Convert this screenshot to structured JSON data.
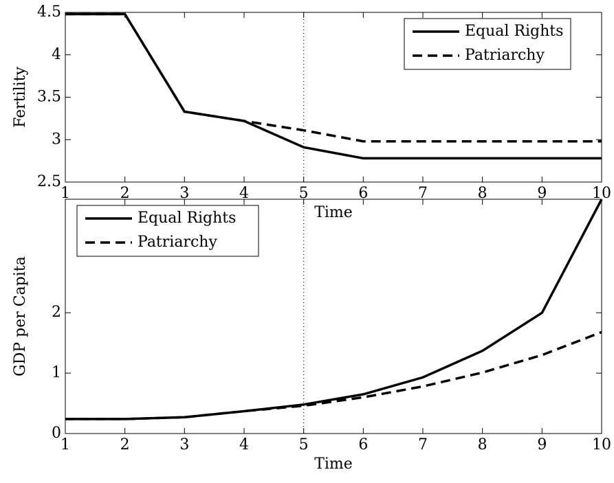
{
  "chart_data": [
    {
      "type": "line",
      "ylabel": "Fertility",
      "xlabel": "Time",
      "x": [
        1,
        2,
        3,
        4,
        5,
        6,
        7,
        8,
        9,
        10
      ],
      "series": [
        {
          "name": "Equal Rights",
          "color": "#000000",
          "dash": "solid",
          "values": [
            4.48,
            4.48,
            3.33,
            3.22,
            2.91,
            2.78,
            2.78,
            2.78,
            2.78,
            2.78
          ]
        },
        {
          "name": "Patriarchy",
          "color": "#000000",
          "dash": "dashed",
          "values": [
            4.48,
            4.48,
            3.33,
            3.22,
            3.11,
            2.98,
            2.98,
            2.98,
            2.98,
            2.98
          ]
        }
      ],
      "xlim": [
        1,
        10
      ],
      "xticks": [
        1,
        2,
        3,
        4,
        5,
        6,
        7,
        8,
        9,
        10
      ],
      "ylim": [
        2.5,
        4.5
      ],
      "yticks": [
        2.5,
        3,
        3.5,
        4,
        4.5
      ],
      "vline": 5,
      "legend": "upper right"
    },
    {
      "type": "line",
      "ylabel": "GDP per Capita",
      "xlabel": "Time",
      "x": [
        1,
        2,
        3,
        4,
        5,
        6,
        7,
        8,
        9,
        10
      ],
      "series": [
        {
          "name": "Equal Rights",
          "color": "#000000",
          "dash": "solid",
          "values": [
            0.24,
            0.24,
            0.27,
            0.37,
            0.48,
            0.65,
            0.93,
            1.37,
            2.0,
            3.88
          ]
        },
        {
          "name": "Patriarchy",
          "color": "#000000",
          "dash": "dashed",
          "values": [
            0.24,
            0.24,
            0.27,
            0.37,
            0.46,
            0.6,
            0.78,
            1.01,
            1.3,
            1.68
          ]
        }
      ],
      "xlim": [
        1,
        10
      ],
      "xticks": [
        1,
        2,
        3,
        4,
        5,
        6,
        7,
        8,
        9,
        10
      ],
      "ylim": [
        0,
        3.88
      ],
      "yticks": [
        0,
        1,
        2
      ],
      "vline": 5,
      "legend": "upper left"
    }
  ]
}
